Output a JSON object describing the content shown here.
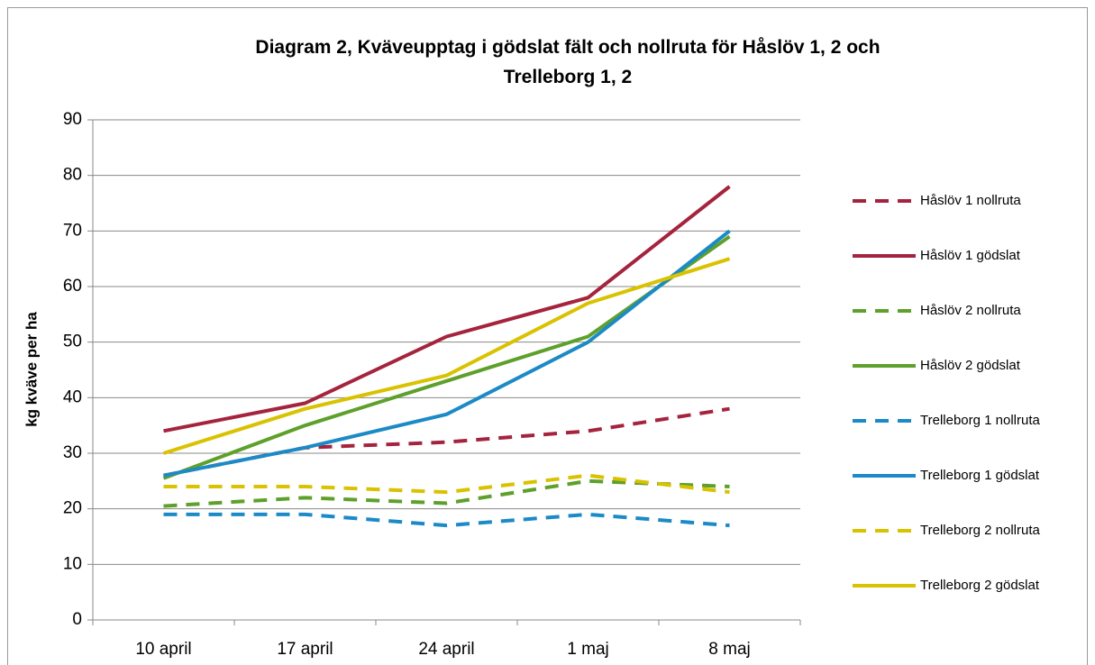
{
  "chart_data": {
    "type": "line",
    "title": "Diagram 2, Kväveupptag i gödslat fält och nollruta för Håslöv 1, 2 och Trelleborg 1, 2",
    "y_label": "kg kväve per ha",
    "categories": [
      "10 april",
      "17 april",
      "24 april",
      "1 maj",
      "8 maj"
    ],
    "ylim": [
      0,
      90
    ],
    "yticks": [
      0,
      10,
      20,
      30,
      40,
      50,
      60,
      70,
      80,
      90
    ],
    "grid": true,
    "legend": "right",
    "series": [
      {
        "name": "Håslöv 1 nollruta",
        "color": "#a5243d",
        "dashed": true,
        "values": [
          26,
          31,
          32,
          34,
          38
        ]
      },
      {
        "name": "Håslöv 1 gödslat",
        "color": "#a5243d",
        "dashed": false,
        "values": [
          34,
          39,
          51,
          58,
          78
        ]
      },
      {
        "name": "Håslöv 2 nollruta",
        "color": "#5ea02c",
        "dashed": true,
        "values": [
          20.5,
          22,
          21,
          25,
          24
        ]
      },
      {
        "name": "Håslöv 2 gödslat",
        "color": "#5ea02c",
        "dashed": false,
        "values": [
          25.5,
          35,
          43,
          51,
          69
        ]
      },
      {
        "name": "Trelleborg 1 nollruta",
        "color": "#1b8ac6",
        "dashed": true,
        "values": [
          19,
          19,
          17,
          19,
          17
        ]
      },
      {
        "name": "Trelleborg 1 gödslat",
        "color": "#1b8ac6",
        "dashed": false,
        "values": [
          26,
          31,
          37,
          50,
          70
        ]
      },
      {
        "name": "Trelleborg 2 nollruta",
        "color": "#d9c200",
        "dashed": true,
        "values": [
          24,
          24,
          23,
          26,
          23
        ]
      },
      {
        "name": "Trelleborg 2 gödslat",
        "color": "#d9c200",
        "dashed": false,
        "values": [
          30,
          38,
          44,
          57,
          65
        ]
      }
    ]
  }
}
